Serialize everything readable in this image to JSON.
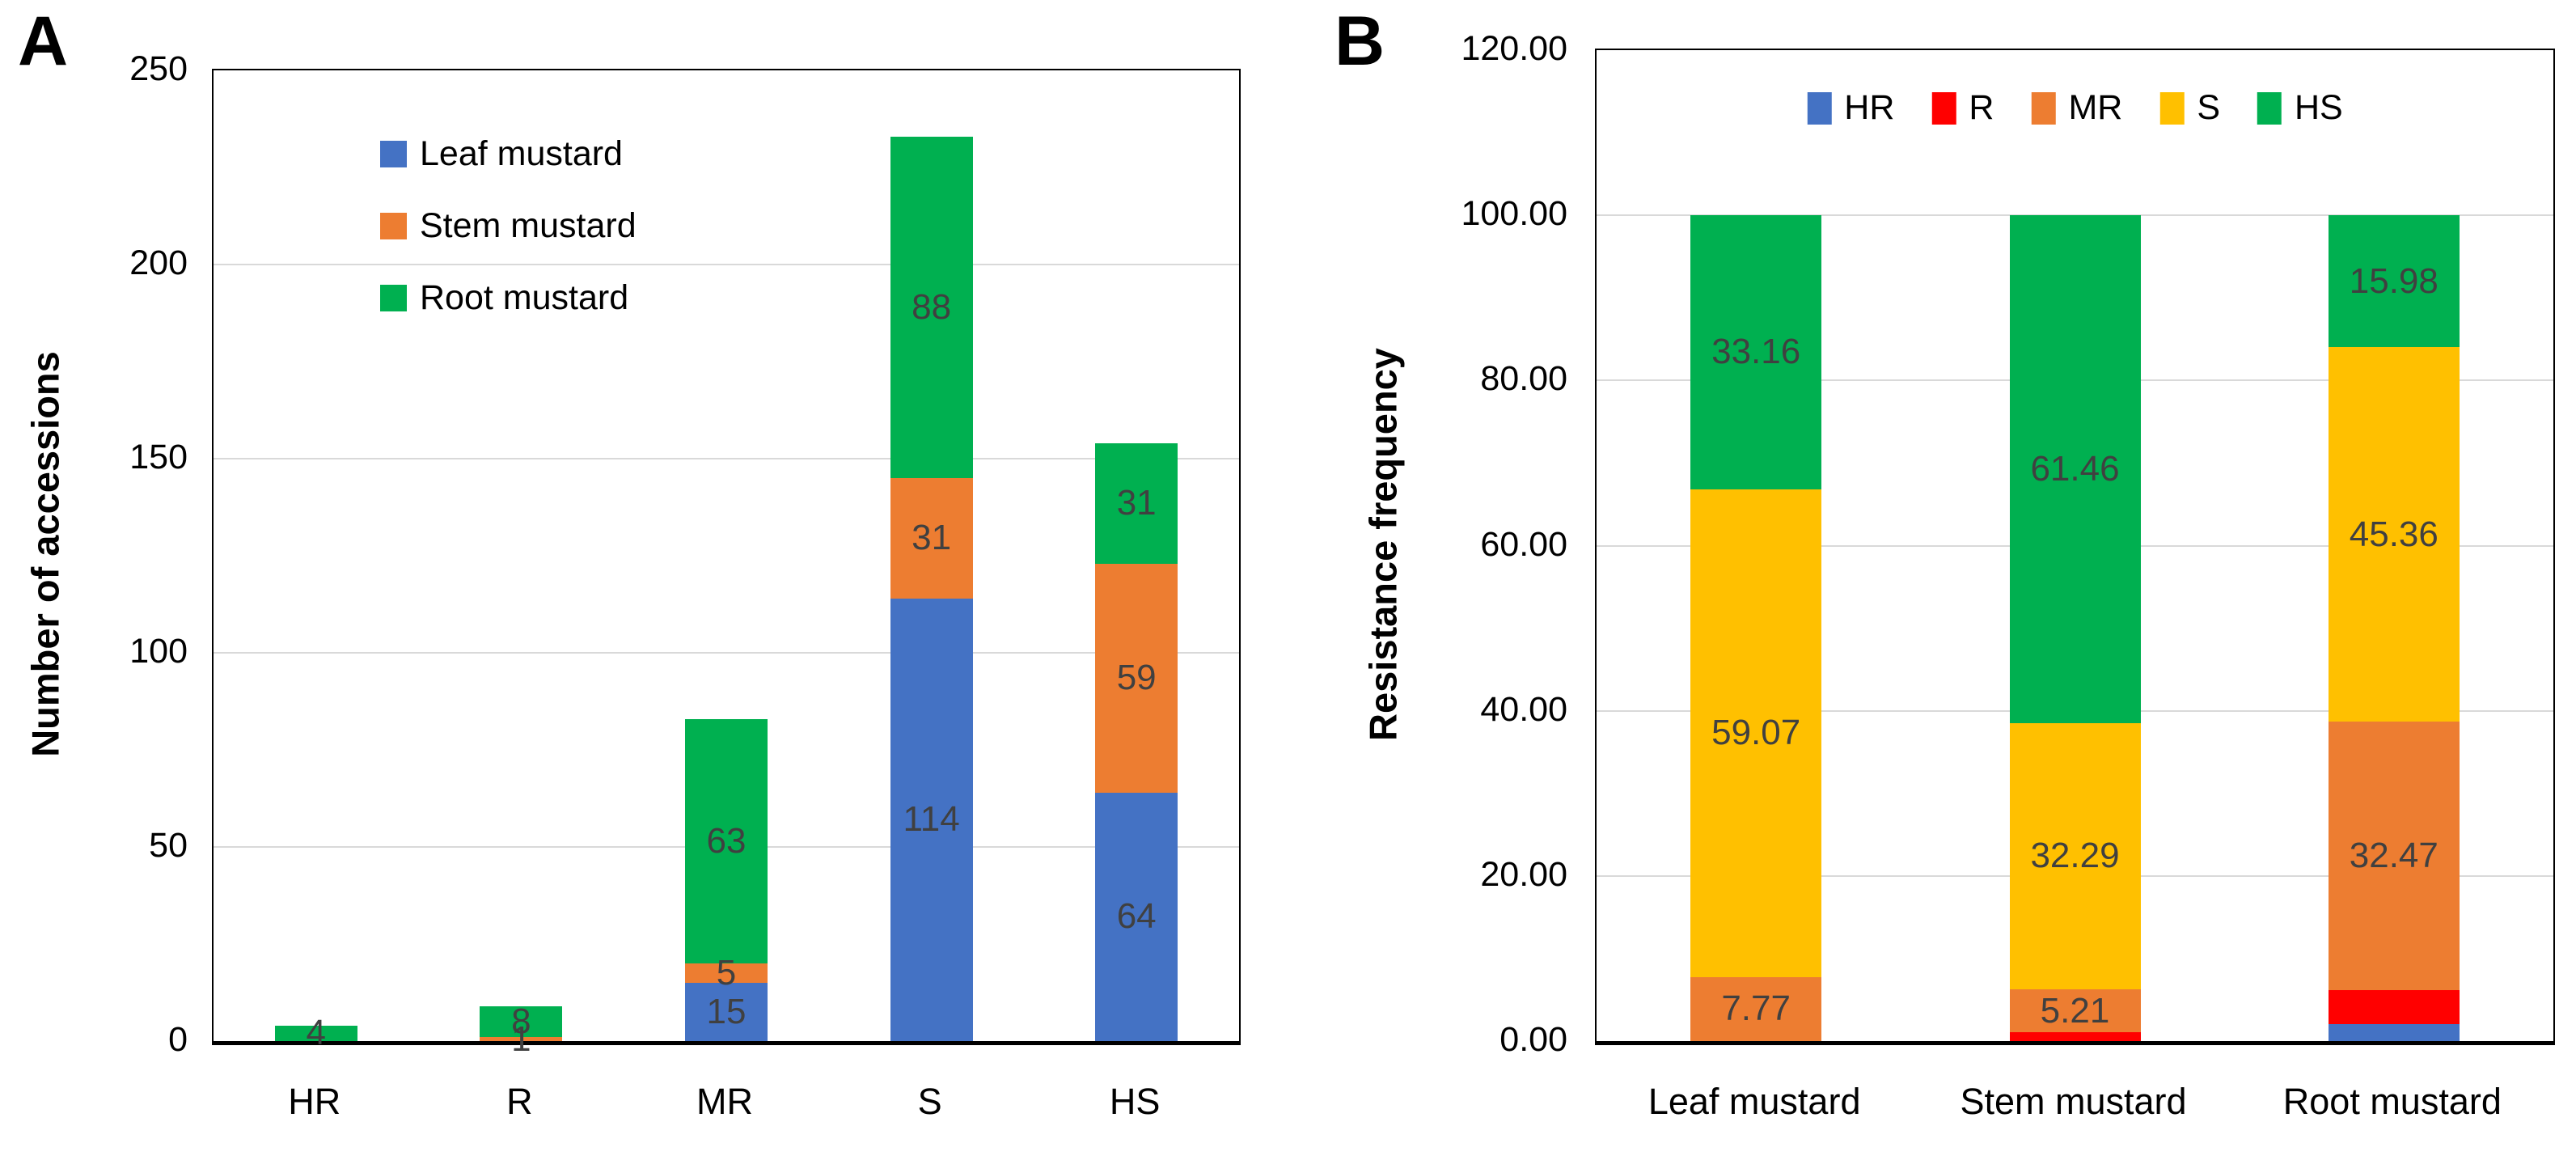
{
  "figure": {
    "background": "#FFFFFF",
    "panel_letters": [
      "A",
      "B"
    ]
  },
  "colors": {
    "blue": "#4472C4",
    "orange": "#ED7D31",
    "green": "#00B050",
    "yellow": "#FFC000",
    "red": "#FF0000",
    "grid": "#D9D9D9",
    "axis_border": "#000000",
    "data_label": "#404040",
    "tick_text": "#000000"
  },
  "chart_data": [
    {
      "type": "bar",
      "stacked": true,
      "panel": "A",
      "title": "",
      "xlabel": "",
      "ylabel": "Number of accessions",
      "ylim": [
        0,
        250
      ],
      "grid": true,
      "legend_position": "inside-top-left",
      "legend_orientation": "vertical",
      "categories": [
        "HR",
        "R",
        "MR",
        "S",
        "HS"
      ],
      "yticks": [
        {
          "value": 0,
          "label": "0"
        },
        {
          "value": 50,
          "label": "50"
        },
        {
          "value": 100,
          "label": "100"
        },
        {
          "value": 150,
          "label": "150"
        },
        {
          "value": 200,
          "label": "200"
        },
        {
          "value": 250,
          "label": "250"
        }
      ],
      "series": [
        {
          "name": "Leaf mustard",
          "color_key": "blue",
          "values": [
            0,
            0,
            15,
            114,
            64
          ],
          "labels": [
            null,
            null,
            "15",
            "114",
            "64"
          ]
        },
        {
          "name": "Stem mustard",
          "color_key": "orange",
          "values": [
            0,
            1,
            5,
            31,
            59
          ],
          "labels": [
            null,
            "1",
            "5",
            "31",
            "59"
          ]
        },
        {
          "name": "Root mustard",
          "color_key": "green",
          "values": [
            4,
            8,
            63,
            88,
            31
          ],
          "labels": [
            "4",
            "8",
            "63",
            "88",
            "31"
          ]
        }
      ]
    },
    {
      "type": "bar",
      "stacked": true,
      "panel": "B",
      "title": "",
      "xlabel": "",
      "ylabel": "Resistance frequency",
      "ylim": [
        0,
        120
      ],
      "grid": true,
      "legend_position": "inside-top-center",
      "legend_orientation": "horizontal",
      "categories": [
        "Leaf mustard",
        "Stem mustard",
        "Root mustard"
      ],
      "yticks": [
        {
          "value": 0,
          "label": "0.00"
        },
        {
          "value": 20,
          "label": "20.00"
        },
        {
          "value": 40,
          "label": "40.00"
        },
        {
          "value": 60,
          "label": "60.00"
        },
        {
          "value": 80,
          "label": "80.00"
        },
        {
          "value": 100,
          "label": "100.00"
        },
        {
          "value": 120,
          "label": "120.00"
        }
      ],
      "series": [
        {
          "name": "HR",
          "color_key": "blue",
          "values": [
            0,
            0,
            2.06
          ],
          "labels": [
            null,
            null,
            null
          ]
        },
        {
          "name": "R",
          "color_key": "red",
          "values": [
            0,
            1.04,
            4.13
          ],
          "labels": [
            null,
            null,
            null
          ]
        },
        {
          "name": "MR",
          "color_key": "orange",
          "values": [
            7.77,
            5.21,
            32.47
          ],
          "labels": [
            "7.77",
            "5.21",
            "32.47"
          ]
        },
        {
          "name": "S",
          "color_key": "yellow",
          "values": [
            59.07,
            32.29,
            45.36
          ],
          "labels": [
            "59.07",
            "32.29",
            "45.36"
          ]
        },
        {
          "name": "HS",
          "color_key": "green",
          "values": [
            33.16,
            61.46,
            15.98
          ],
          "labels": [
            "33.16",
            "61.46",
            "15.98"
          ]
        }
      ]
    }
  ]
}
